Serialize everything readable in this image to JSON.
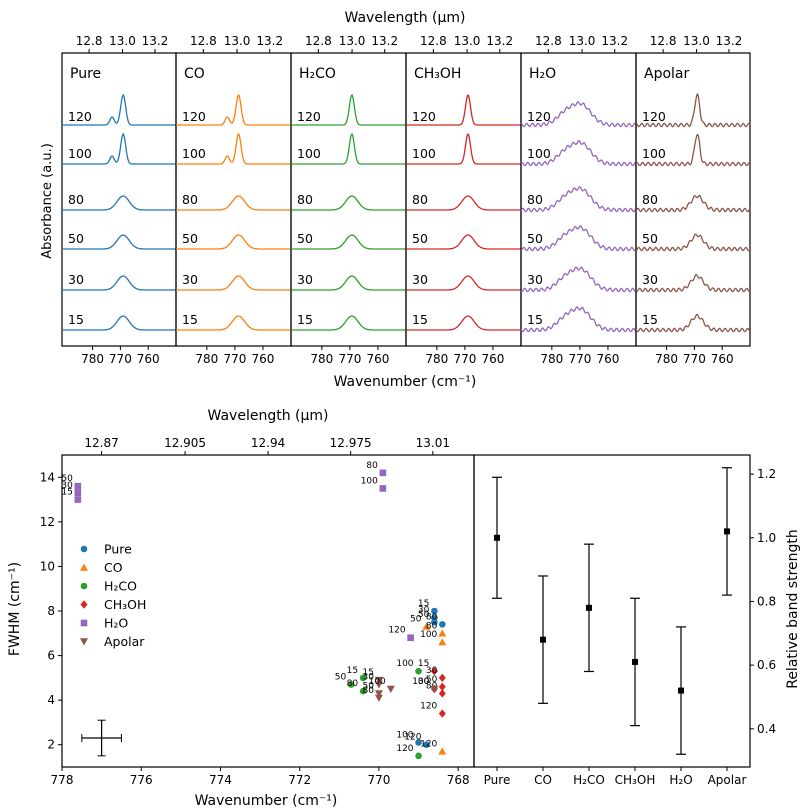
{
  "chart_data": [
    {
      "type": "line",
      "title": "Wavelength (μm)",
      "top_label": "Wavelength (μm)",
      "xlabel": "Wavenumber (cm⁻¹)",
      "ylabel": "Absorbance (a.u.)",
      "xlim": [
        791,
        750
      ],
      "x_ticks": [
        "780",
        "770",
        "760"
      ],
      "wavelength_ticks": [
        "12.8",
        "13.0",
        "13.2"
      ],
      "panels": [
        {
          "name": "Pure",
          "color": "#1f77b4"
        },
        {
          "name": "CO",
          "color": "#ff7f0e"
        },
        {
          "name": "H₂CO",
          "color": "#2ca02c"
        },
        {
          "name": "CH₃OH",
          "color": "#d62728"
        },
        {
          "name": "H₂O",
          "color": "#9467bd"
        },
        {
          "name": "Apolar",
          "color": "#8c564b"
        }
      ],
      "temperatures": [
        "120",
        "100",
        "80",
        "50",
        "30",
        "15"
      ]
    },
    {
      "type": "scatter",
      "title": "Wavelength (μm)",
      "top_label": "Wavelength (μm)",
      "xlabel": "Wavenumber (cm⁻¹)",
      "ylabel": "FWHM (cm⁻¹)",
      "xlim": [
        778,
        767.6
      ],
      "ylim": [
        1,
        15
      ],
      "x_ticks": [
        "778",
        "776",
        "774",
        "772",
        "770",
        "768"
      ],
      "y_ticks": [
        "2",
        "4",
        "6",
        "8",
        "10",
        "12",
        "14"
      ],
      "wavelength_ticks": [
        "12.87",
        "12.905",
        "12.94",
        "12.975",
        "13.01"
      ],
      "error_bar": {
        "x": 777.0,
        "y": 2.3,
        "dx": 0.5,
        "dy": 0.8
      },
      "series": [
        {
          "name": "Pure",
          "marker": "circle",
          "color": "#1f77b4",
          "points": [
            {
              "x": 768.6,
              "y": 8.0,
              "label": "15"
            },
            {
              "x": 768.6,
              "y": 7.7,
              "label": "30"
            },
            {
              "x": 768.6,
              "y": 7.5,
              "label": "50"
            },
            {
              "x": 768.4,
              "y": 7.4,
              "label": "80"
            },
            {
              "x": 769.0,
              "y": 2.1,
              "label": "100"
            },
            {
              "x": 768.8,
              "y": 2.0,
              "label": "120"
            }
          ]
        },
        {
          "name": "CO",
          "marker": "triangle",
          "color": "#ff7f0e",
          "points": [
            {
              "x": 768.8,
              "y": 7.3,
              "label": "50"
            },
            {
              "x": 768.4,
              "y": 7.0,
              "label": "80"
            },
            {
              "x": 768.4,
              "y": 6.6,
              "label": "100"
            },
            {
              "x": 768.4,
              "y": 1.7,
              "label": "120"
            }
          ]
        },
        {
          "name": "H₂CO",
          "marker": "circle",
          "color": "#2ca02c",
          "points": [
            {
              "x": 770.4,
              "y": 5.0,
              "label": "15"
            },
            {
              "x": 770.7,
              "y": 4.7,
              "label": "50"
            },
            {
              "x": 770.4,
              "y": 4.4,
              "label": "80"
            },
            {
              "x": 769.0,
              "y": 5.3,
              "label": "100"
            },
            {
              "x": 769.0,
              "y": 1.5,
              "label": "120"
            }
          ]
        },
        {
          "name": "CH₃OH",
          "marker": "diamond",
          "color": "#d62728",
          "points": [
            {
              "x": 768.6,
              "y": 5.3,
              "label": "15"
            },
            {
              "x": 768.4,
              "y": 5.0,
              "label": "30"
            },
            {
              "x": 768.4,
              "y": 4.6,
              "label": "50"
            },
            {
              "x": 768.4,
              "y": 4.3,
              "label": "80"
            },
            {
              "x": 768.6,
              "y": 4.5,
              "label": "100"
            },
            {
              "x": 768.4,
              "y": 3.4,
              "label": "120"
            }
          ]
        },
        {
          "name": "H₂O",
          "marker": "square",
          "color": "#9467bd",
          "points": [
            {
              "x": 777.6,
              "y": 13.6,
              "label": "50"
            },
            {
              "x": 777.6,
              "y": 13.3,
              "label": "30"
            },
            {
              "x": 777.6,
              "y": 13.0,
              "label": "15"
            },
            {
              "x": 769.9,
              "y": 14.2,
              "label": "80"
            },
            {
              "x": 769.9,
              "y": 13.5,
              "label": "100"
            },
            {
              "x": 769.2,
              "y": 6.8,
              "label": "120"
            }
          ]
        },
        {
          "name": "Apolar",
          "marker": "triangle-down",
          "color": "#8c564b",
          "points": [
            {
              "x": 770.0,
              "y": 4.9,
              "label": "15"
            },
            {
              "x": 770.0,
              "y": 4.7,
              "label": "30"
            },
            {
              "x": 769.7,
              "y": 4.5,
              "label": "100"
            },
            {
              "x": 770.0,
              "y": 4.3,
              "label": "50"
            },
            {
              "x": 770.0,
              "y": 4.1,
              "label": "80"
            },
            {
              "x": 768.6,
              "y": 4.5,
              "label": "30"
            }
          ]
        }
      ]
    },
    {
      "type": "scatter",
      "title": "Relative band strength",
      "ylabel": "Relative band strength",
      "ylim": [
        0.28,
        1.26
      ],
      "y_ticks": [
        "0.4",
        "0.6",
        "0.8",
        "1.0",
        "1.2"
      ],
      "categories": [
        "Pure",
        "CO",
        "H₂CO",
        "CH₃OH",
        "H₂O",
        "Apolar"
      ],
      "values": [
        1.0,
        0.68,
        0.78,
        0.61,
        0.52,
        1.02
      ],
      "errors": [
        0.19,
        0.2,
        0.2,
        0.2,
        0.2,
        0.2
      ]
    }
  ]
}
